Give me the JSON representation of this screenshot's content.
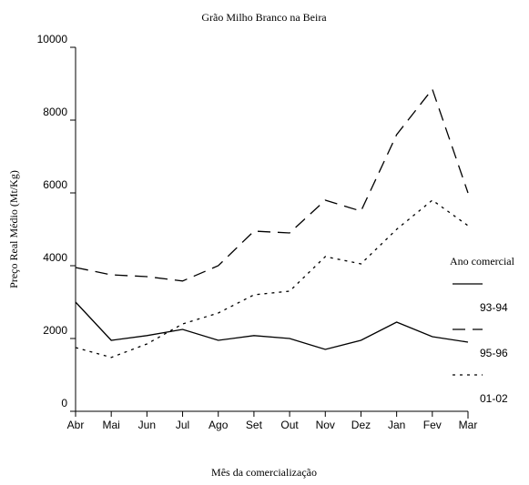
{
  "chart_data": {
    "type": "line",
    "title": "Grão Milho Branco na Beira",
    "xlabel": "Mês da comercialização",
    "ylabel": "Preço Real Médio (Mt/Kg)",
    "categories": [
      "Abr",
      "Mai",
      "Jun",
      "Jul",
      "Ago",
      "Set",
      "Out",
      "Nov",
      "Dez",
      "Jan",
      "Fev",
      "Mar"
    ],
    "series": [
      {
        "name": "93-94",
        "color": "#000000",
        "dash": "solid",
        "values": [
          3000,
          1950,
          2080,
          2250,
          1950,
          2080,
          2000,
          1700,
          1950,
          2450,
          2050,
          1900
        ]
      },
      {
        "name": "95-96",
        "color": "#000000",
        "dash": "dashed",
        "values": [
          3950,
          3750,
          3700,
          3580,
          4000,
          4950,
          4900,
          5800,
          5500,
          7600,
          8850,
          6000
        ]
      },
      {
        "name": "01-02",
        "color": "#000000",
        "dash": "dotted",
        "values": [
          1750,
          1480,
          1850,
          2400,
          2700,
          3200,
          3300,
          4250,
          4050,
          5000,
          5800,
          5100
        ]
      }
    ],
    "legend_title": "Ano comercial",
    "legend": "right",
    "ylim": [
      0,
      10000
    ],
    "yticks": [
      0,
      2000,
      4000,
      6000,
      8000,
      10000
    ]
  }
}
